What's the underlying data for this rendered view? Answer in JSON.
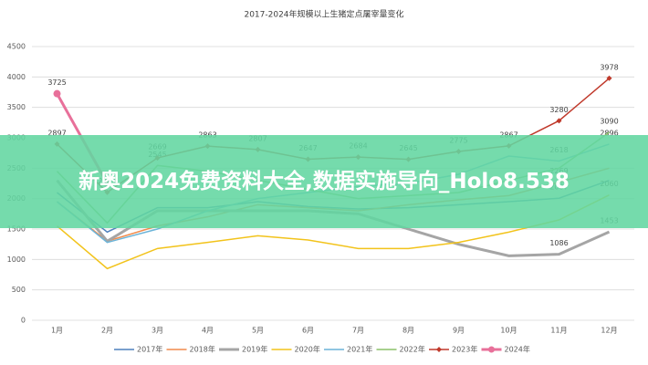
{
  "chart_data": {
    "type": "line",
    "title": "2017-2024年规模以上生猪定点屠宰量变化",
    "categories": [
      "1月",
      "2月",
      "3月",
      "4月",
      "5月",
      "6月",
      "7月",
      "8月",
      "9月",
      "10月",
      "11月",
      "12月"
    ],
    "ylim": [
      0,
      4500
    ],
    "yticks": [
      0,
      500,
      1000,
      1500,
      2000,
      2500,
      3000,
      3500,
      4000,
      4500
    ],
    "grid": true,
    "series": [
      {
        "name": "2017年",
        "color": "#4f81bd",
        "marker": "none",
        "values": [
          2100,
          1450,
          1850,
          1850,
          1950,
          1870,
          1830,
          1850,
          1900,
          1950,
          2007,
          2300
        ],
        "value_labels": [
          null,
          null,
          null,
          null,
          null,
          null,
          null,
          null,
          null,
          null,
          "2007",
          null
        ]
      },
      {
        "name": "2018年",
        "color": "#f08a4b",
        "marker": "none",
        "values": [
          1950,
          1300,
          1550,
          1700,
          1900,
          1850,
          1800,
          1900,
          1980,
          2050,
          2269,
          2500
        ],
        "value_labels": [
          null,
          null,
          null,
          null,
          null,
          null,
          null,
          null,
          null,
          null,
          "2269",
          null
        ]
      },
      {
        "name": "2019年",
        "color": "#a5a5a5",
        "marker": "none",
        "width": 3,
        "values": [
          2300,
          1300,
          1800,
          1800,
          1800,
          1800,
          1750,
          1500,
          1250,
          1060,
          1086,
          1453
        ],
        "value_labels": [
          null,
          null,
          null,
          null,
          null,
          null,
          null,
          null,
          null,
          null,
          "1086",
          "1453"
        ]
      },
      {
        "name": "2020年",
        "color": "#f2c31b",
        "marker": "none",
        "values": [
          1550,
          850,
          1180,
          1280,
          1390,
          1320,
          1180,
          1180,
          1280,
          1450,
          1650,
          2060
        ],
        "value_labels": [
          null,
          null,
          null,
          null,
          null,
          null,
          null,
          null,
          null,
          null,
          null,
          "2060"
        ]
      },
      {
        "name": "2021年",
        "color": "#6cb4d8",
        "marker": "none",
        "values": [
          1950,
          1280,
          1500,
          1800,
          2000,
          2100,
          2200,
          2250,
          2400,
          2700,
          2618,
          2896
        ],
        "value_labels": [
          null,
          null,
          null,
          null,
          null,
          null,
          null,
          null,
          null,
          null,
          "2618",
          "2896"
        ]
      },
      {
        "name": "2022年",
        "color": "#8cc168",
        "marker": "none",
        "values": [
          2450,
          1600,
          2545,
          2450,
          2300,
          2150,
          2000,
          2050,
          2100,
          2300,
          2500,
          3090
        ],
        "value_labels": [
          null,
          null,
          "2545",
          null,
          null,
          null,
          null,
          null,
          null,
          null,
          null,
          "3090"
        ]
      },
      {
        "name": "2023年",
        "color": "#c0392b",
        "marker": "diamond",
        "values": [
          2897,
          2104,
          2669,
          2863,
          2807,
          2647,
          2684,
          2645,
          2775,
          2867,
          3280,
          3978
        ],
        "value_labels": [
          "2897",
          "2104",
          "2669",
          "2863",
          "2807",
          "2647",
          "2684",
          "2645",
          "2775",
          "2867",
          "3280",
          "3978"
        ]
      },
      {
        "name": "2024年",
        "color": "#e8709a",
        "marker": "circle",
        "width": 3,
        "values": [
          3725,
          2250,
          null,
          null,
          null,
          null,
          null,
          null,
          null,
          null,
          null,
          null
        ],
        "value_labels": [
          "3725",
          null,
          null,
          null,
          null,
          null,
          null,
          null,
          null,
          null,
          null,
          null
        ]
      }
    ]
  },
  "overlay": {
    "text": "新奥2024免费资料大全,数据实施导向_Holo8.538"
  }
}
